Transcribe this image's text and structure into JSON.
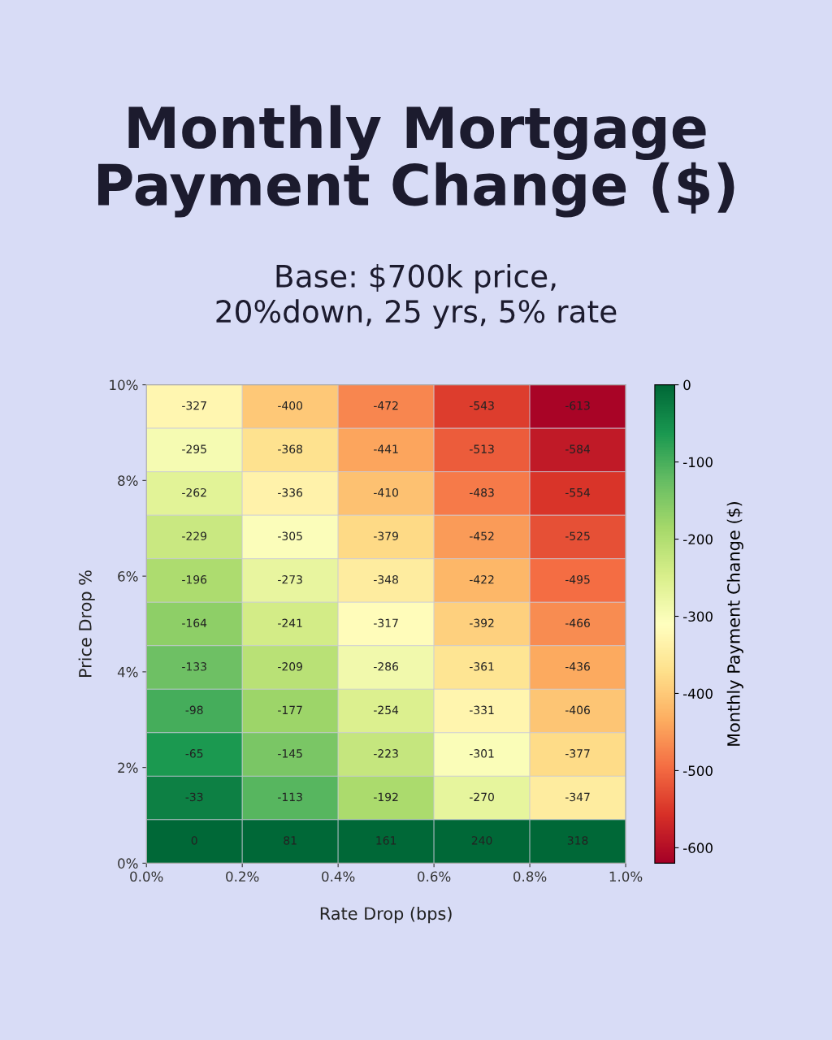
{
  "chart_data": {
    "type": "heatmap",
    "title": "Monthly Mortgage\nPayment Change ($)",
    "subtitle": "Base: $700k price,\n20%down, 25 yrs, 5% rate",
    "xlabel": "Rate Drop (bps)",
    "ylabel": "Price Drop %",
    "clabel": "Monthly Payment Change ($)",
    "xlim": [
      0,
      1
    ],
    "xticks": [
      {
        "value": 0,
        "label": "0.0%"
      },
      {
        "value": 0.2,
        "label": "0.2%"
      },
      {
        "value": 0.4,
        "label": "0.4%"
      },
      {
        "value": 0.6,
        "label": "0.6%"
      },
      {
        "value": 0.8,
        "label": "0.8%"
      },
      {
        "value": 1,
        "label": "1.0%"
      }
    ],
    "ylim": [
      0,
      10
    ],
    "yticks": [
      {
        "value": 0,
        "label": "0%"
      },
      {
        "value": 2,
        "label": "2%"
      },
      {
        "value": 4,
        "label": "4%"
      },
      {
        "value": 6,
        "label": "6%"
      },
      {
        "value": 8,
        "label": "8%"
      },
      {
        "value": 10,
        "label": "10%"
      }
    ],
    "cells": [
      [
        -327,
        -400,
        -472,
        -543,
        -613
      ],
      [
        -295,
        -368,
        -441,
        -513,
        -584
      ],
      [
        -262,
        -336,
        -410,
        -483,
        -554
      ],
      [
        -229,
        -305,
        -379,
        -452,
        -525
      ],
      [
        -196,
        -273,
        -348,
        -422,
        -495
      ],
      [
        -164,
        -241,
        -317,
        -392,
        -466
      ],
      [
        -133,
        -209,
        -286,
        -361,
        -436
      ],
      [
        -98,
        -177,
        -254,
        -331,
        -406
      ],
      [
        -65,
        -145,
        -223,
        -301,
        -377
      ],
      [
        -33,
        -113,
        -192,
        -270,
        -347
      ],
      [
        0,
        81,
        161,
        240,
        318
      ]
    ],
    "cell_labels": [
      [
        "-327",
        "-400",
        "-472",
        "-543",
        "-613"
      ],
      [
        "-295",
        "-368",
        "-441",
        "-513",
        "-584"
      ],
      [
        "-262",
        "-336",
        "-410",
        "-483",
        "-554"
      ],
      [
        "-229",
        "-305",
        "-379",
        "-452",
        "-525"
      ],
      [
        "-196",
        "-273",
        "-348",
        "-422",
        "-495"
      ],
      [
        "-164",
        "-241",
        "-317",
        "-392",
        "-466"
      ],
      [
        "-133",
        "-209",
        "-286",
        "-361",
        "-436"
      ],
      [
        "-98",
        "-177",
        "-254",
        "-331",
        "-406"
      ],
      [
        "-65",
        "-145",
        "-223",
        "-301",
        "-377"
      ],
      [
        "-33",
        "-113",
        "-192",
        "-270",
        "-347"
      ],
      [
        "0",
        "81",
        "161",
        "240",
        "318"
      ]
    ],
    "clim": [
      -620,
      0
    ],
    "cticks": [
      0,
      -100,
      -200,
      -300,
      -400,
      -500,
      -600
    ]
  }
}
